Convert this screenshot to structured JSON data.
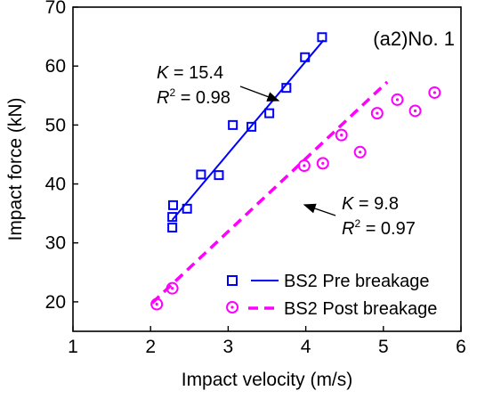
{
  "chart_data": {
    "type": "scatter",
    "panel_label": "(a2)No. 1",
    "xlabel": "Impact velocity (m/s)",
    "ylabel": "Impact force (kN)",
    "xlim": [
      1,
      6
    ],
    "ylim": [
      15,
      70
    ],
    "xticks": [
      1,
      2,
      3,
      4,
      5,
      6
    ],
    "yticks": [
      20,
      30,
      40,
      50,
      60,
      70
    ],
    "grid": false,
    "legend_position": "bottom-right",
    "series": [
      {
        "name": "BS2 Pre breakage",
        "color": "#0000ff",
        "marker": "square",
        "points": [
          [
            2.28,
            32.6
          ],
          [
            2.28,
            34.4
          ],
          [
            2.29,
            36.4
          ],
          [
            2.47,
            35.8
          ],
          [
            2.65,
            41.6
          ],
          [
            2.88,
            41.5
          ],
          [
            3.06,
            50.0
          ],
          [
            3.3,
            49.7
          ],
          [
            3.53,
            52.0
          ],
          [
            3.75,
            56.3
          ],
          [
            3.99,
            61.5
          ],
          [
            4.21,
            64.9
          ]
        ],
        "fit": {
          "x": [
            2.28,
            4.23
          ],
          "y": [
            33.9,
            64.4
          ],
          "style": "solid",
          "K": "15.4",
          "R2": "0.98"
        }
      },
      {
        "name": "BS2 Post breakage",
        "color": "#ff00ff",
        "marker": "circle-dot",
        "points": [
          [
            2.08,
            19.6
          ],
          [
            2.28,
            22.3
          ],
          [
            3.98,
            43.1
          ],
          [
            4.22,
            43.5
          ],
          [
            4.46,
            48.3
          ],
          [
            4.7,
            45.4
          ],
          [
            4.92,
            52.0
          ],
          [
            5.18,
            54.3
          ],
          [
            5.41,
            52.4
          ],
          [
            5.66,
            55.5
          ]
        ],
        "fit": {
          "x": [
            2.02,
            5.05
          ],
          "y": [
            19.8,
            57.3
          ],
          "style": "dashed",
          "K": "9.8",
          "R2": "0.97"
        }
      }
    ],
    "annotations": [
      {
        "k_prefix": "K",
        "k_text": " = 15.4",
        "r_prefix": "R",
        "r_sup": "2",
        "r_text": " = 0.98"
      },
      {
        "k_prefix": "K",
        "k_text": " = 9.8",
        "r_prefix": "R",
        "r_sup": "2",
        "r_text": " = 0.97"
      }
    ]
  }
}
